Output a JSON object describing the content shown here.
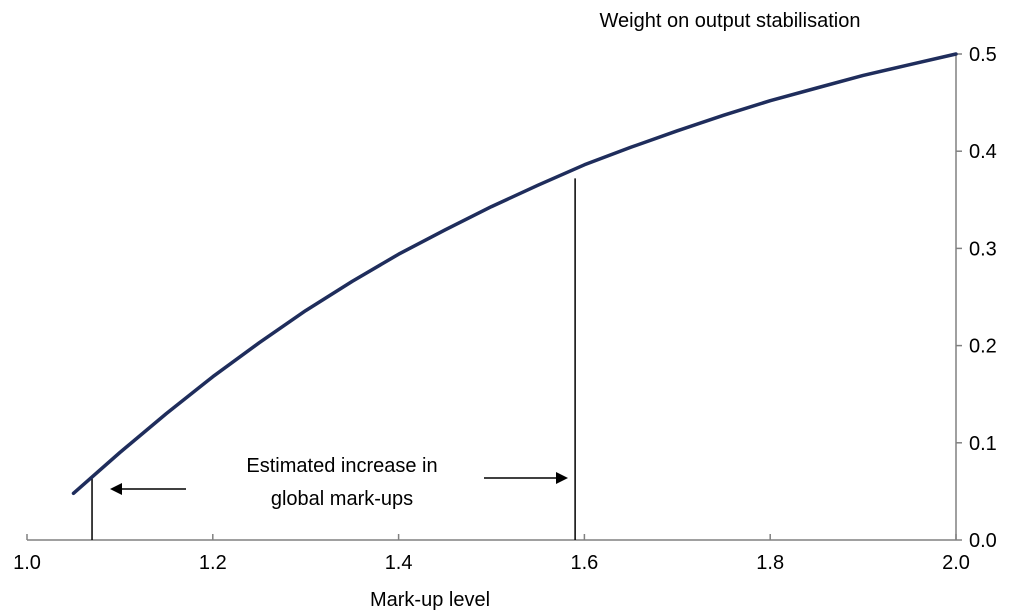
{
  "chart_data": {
    "type": "line",
    "title": "",
    "xlabel": "Mark-up level",
    "ylabel": "Weight on output stabilisation",
    "xlim": [
      1.0,
      2.0
    ],
    "ylim": [
      0.0,
      0.5
    ],
    "x_ticks": [
      "1.0",
      "1.2",
      "1.4",
      "1.6",
      "1.8",
      "2.0"
    ],
    "y_ticks": [
      "0.0",
      "0.1",
      "0.2",
      "0.3",
      "0.4",
      "0.5"
    ],
    "y_axis_side": "right",
    "grid": false,
    "legend": "none",
    "line_color": "#1f2d5c",
    "series": [
      {
        "x": [
          1.05,
          1.1,
          1.15,
          1.2,
          1.25,
          1.3,
          1.35,
          1.4,
          1.45,
          1.5,
          1.55,
          1.6,
          1.65,
          1.7,
          1.75,
          1.8,
          1.85,
          1.9,
          1.95,
          2.0
        ],
        "values": [
          0.048,
          0.09,
          0.13,
          0.168,
          0.203,
          0.236,
          0.266,
          0.294,
          0.319,
          0.343,
          0.365,
          0.386,
          0.404,
          0.421,
          0.437,
          0.452,
          0.465,
          0.478,
          0.489,
          0.5
        ]
      }
    ],
    "reference_lines": [
      {
        "x": 1.07,
        "y": 0.064
      },
      {
        "x": 1.59,
        "y": 0.372
      }
    ],
    "annotation": {
      "lines": [
        "Estimated increase in",
        "global mark-ups"
      ]
    }
  }
}
